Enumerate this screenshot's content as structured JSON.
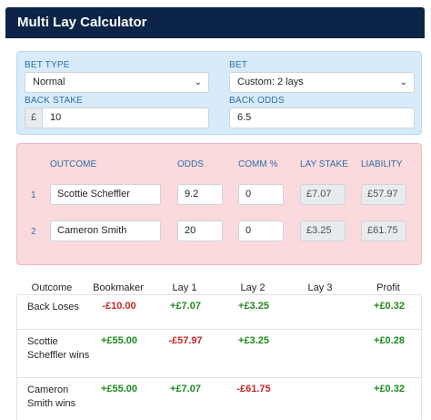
{
  "header": {
    "title": "Multi Lay Calculator"
  },
  "bet_settings": {
    "bet_type_label": "BET TYPE",
    "bet_type_value": "Normal",
    "bet_label": "BET",
    "bet_value": "Custom: 2 lays",
    "back_stake_label": "BACK STAKE",
    "currency": "£",
    "back_stake_value": "10",
    "back_odds_label": "BACK ODDS",
    "back_odds_value": "6.5"
  },
  "lays": {
    "headers": [
      "OUTCOME",
      "ODDS",
      "COMM %",
      "LAY STAKE",
      "LIABILITY"
    ],
    "rows": [
      {
        "num": "1",
        "outcome": "Scottie Scheffler",
        "odds": "9.2",
        "comm": "0",
        "lay_stake": "£7.07",
        "liability": "£57.97"
      },
      {
        "num": "2",
        "outcome": "Cameron Smith",
        "odds": "20",
        "comm": "0",
        "lay_stake": "£3.25",
        "liability": "£61.75"
      }
    ]
  },
  "results": {
    "headers": [
      "Outcome",
      "Bookmaker",
      "Lay 1",
      "Lay 2",
      "Lay 3",
      "Profit"
    ],
    "rows": [
      {
        "outcome": "Back Loses",
        "bookmaker": "-£10.00",
        "lay1": "+£7.07",
        "lay2": "+£3.25",
        "lay3": "",
        "profit": "+£0.32"
      },
      {
        "outcome": "Scottie Scheffler wins",
        "bookmaker": "+£55.00",
        "lay1": "-£57.97",
        "lay2": "+£3.25",
        "lay3": "",
        "profit": "+£0.28"
      },
      {
        "outcome": "Cameron Smith wins",
        "bookmaker": "+£55.00",
        "lay1": "+£7.07",
        "lay2": "-£61.75",
        "lay3": "",
        "profit": "+£0.32"
      }
    ]
  }
}
